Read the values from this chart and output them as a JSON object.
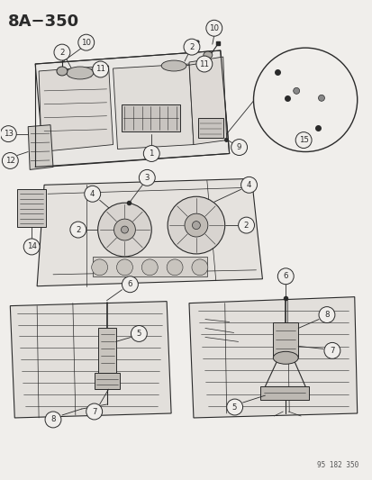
{
  "title": "8A−350",
  "watermark": "95 182 350",
  "bg_color": "#f0eeeb",
  "line_color": "#2a2a2a",
  "title_fontsize": 13,
  "callout_r": 0.018,
  "callout_fontsize": 6.0
}
